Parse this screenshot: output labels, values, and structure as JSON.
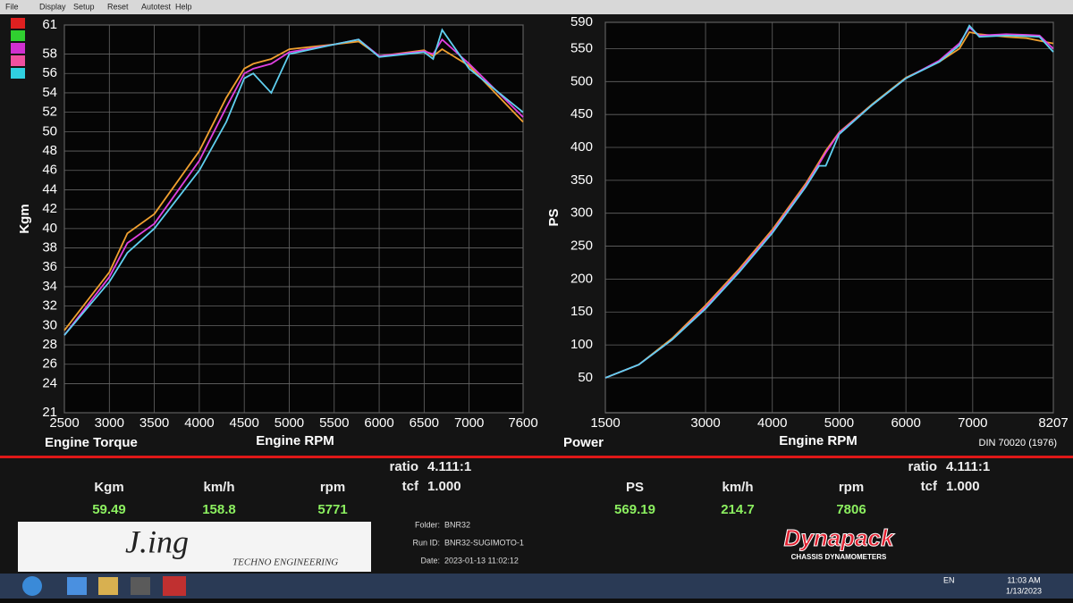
{
  "menu": [
    "File",
    "Display",
    "Setup",
    "Reset",
    "Autotest",
    "Help"
  ],
  "chart_data": [
    {
      "type": "line",
      "title": "Engine Torque",
      "x_label": "Engine RPM",
      "y_label": "Kgm",
      "x": [
        2500,
        3000,
        3200,
        3500,
        4000,
        4300,
        4500,
        4600,
        4800,
        5000,
        5500,
        5771,
        6000,
        6500,
        6600,
        6700,
        7000,
        7600
      ],
      "series": [
        {
          "color": "#f0a030",
          "values": [
            29.5,
            35.5,
            39.5,
            41.5,
            48,
            53.5,
            56.5,
            57,
            57.5,
            58.5,
            59,
            59.3,
            57.8,
            58.4,
            57.8,
            58.5,
            56.8,
            51
          ]
        },
        {
          "color": "#e040e0",
          "values": [
            29,
            35,
            38.5,
            40.5,
            47,
            52.5,
            56,
            56.5,
            57,
            58.2,
            59,
            59.5,
            57.8,
            58.3,
            58,
            59.5,
            57,
            51.5
          ]
        },
        {
          "color": "#60d0f0",
          "values": [
            29,
            34.5,
            37.5,
            40,
            46,
            51,
            55.5,
            56,
            54,
            58,
            59,
            59.5,
            57.7,
            58.2,
            57.5,
            60.5,
            56.5,
            52
          ]
        }
      ],
      "xlim": [
        2500,
        7600
      ],
      "xticks": [
        2500,
        3000,
        3500,
        4000,
        4500,
        5000,
        5500,
        6000,
        6500,
        7000,
        7600
      ],
      "ylim": [
        21,
        61
      ],
      "yticks": [
        21,
        24,
        26,
        28,
        30,
        32,
        34,
        36,
        38,
        40,
        42,
        44,
        46,
        48,
        50,
        52,
        54,
        56,
        58,
        61
      ],
      "grid": true
    },
    {
      "type": "line",
      "title": "Power",
      "x_label": "Engine RPM",
      "y_label": "PS",
      "x": [
        1500,
        2000,
        2500,
        3000,
        3500,
        4000,
        4500,
        4700,
        4800,
        5000,
        5500,
        6000,
        6500,
        6800,
        6950,
        7100,
        7500,
        7806,
        8000,
        8207
      ],
      "series": [
        {
          "color": "#f0a030",
          "values": [
            50,
            70,
            110,
            160,
            215,
            275,
            345,
            378,
            395,
            423,
            466,
            506,
            530,
            550,
            575,
            572,
            568,
            566,
            562,
            558
          ]
        },
        {
          "color": "#e040e0",
          "values": [
            50,
            70,
            108,
            157,
            212,
            272,
            342,
            375,
            392,
            422,
            465,
            505,
            532,
            558,
            582,
            570,
            572,
            571,
            570,
            550
          ]
        },
        {
          "color": "#60d0f0",
          "values": [
            50,
            70,
            108,
            155,
            210,
            270,
            340,
            372,
            372,
            420,
            465,
            505,
            530,
            555,
            585,
            568,
            570,
            569,
            568,
            545
          ]
        }
      ],
      "xlim": [
        1500,
        8207
      ],
      "xticks": [
        1500,
        3000,
        4000,
        5000,
        6000,
        7000,
        8207
      ],
      "ylim": [
        -3,
        590
      ],
      "yticks": [
        50,
        100,
        150,
        200,
        250,
        300,
        350,
        400,
        450,
        500,
        550,
        590
      ],
      "grid": true
    }
  ],
  "standard": "DIN 70020 (1976)",
  "readouts": [
    {
      "ratio_label": "ratio",
      "ratio": "4.111:1",
      "tcf_label": "tcf",
      "tcf": "1.000",
      "fields": [
        {
          "label": "Kgm",
          "value": "59.49"
        },
        {
          "label": "km/h",
          "value": "158.8"
        },
        {
          "label": "rpm",
          "value": "5771"
        }
      ]
    },
    {
      "ratio_label": "ratio",
      "ratio": "4.111:1",
      "tcf_label": "tcf",
      "tcf": "1.000",
      "fields": [
        {
          "label": "PS",
          "value": "569.19"
        },
        {
          "label": "km/h",
          "value": "214.7"
        },
        {
          "label": "rpm",
          "value": "7806"
        }
      ]
    }
  ],
  "run_info": [
    {
      "label": "Folder:",
      "value": "BNR32"
    },
    {
      "label": "Run ID:",
      "value": "BNR32-SUGIMOTO-1"
    },
    {
      "label": "Date:",
      "value": "2023-01-13 11:02:12"
    }
  ],
  "logo": {
    "name": "J.ing",
    "tagline": "TECHNO ENGINEERING"
  },
  "brand": {
    "name": "Dynapack",
    "tagline": "CHASSIS DYNAMOMETERS"
  },
  "taskbar": {
    "language": "EN",
    "time": "11:03 AM",
    "date": "1/13/2023"
  }
}
